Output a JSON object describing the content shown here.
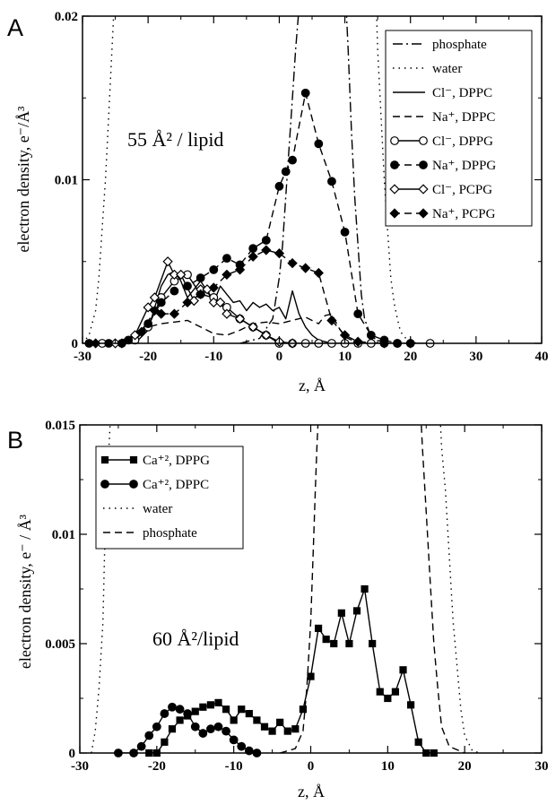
{
  "chart_data": [
    {
      "type": "line",
      "panel_label": "A",
      "xlabel": "z, Å",
      "ylabel": "electron density, e⁻/Å³",
      "xlim": [
        -30,
        40
      ],
      "ylim": [
        0,
        0.02
      ],
      "xticks": [
        -30,
        -20,
        -10,
        0,
        10,
        20,
        30,
        40
      ],
      "yticks": [
        0,
        0.01,
        0.02
      ],
      "xtick_labels": [
        "-30",
        "-20",
        "-10",
        "0",
        "10",
        "20",
        "30",
        "40"
      ],
      "ytick_labels": [
        "0",
        "0.01",
        "0.02"
      ],
      "legend_position": "top-right",
      "annotation": "55 Å² / lipid",
      "series": [
        {
          "name": "phosphate",
          "style": "dashdot",
          "marker": "none",
          "x": [
            -6,
            -3,
            -1,
            0,
            0.5,
            1,
            1.5,
            2,
            2.5,
            3
          ],
          "y": [
            0,
            0.0003,
            0.0015,
            0.004,
            0.006,
            0.009,
            0.012,
            0.015,
            0.018,
            0.0205
          ]
        },
        {
          "name": "phosphate",
          "style": "dashdot",
          "marker": "none",
          "x": [
            10.2,
            10.5,
            11,
            11.5,
            12,
            12.5,
            13,
            14,
            16
          ],
          "y": [
            0.0205,
            0.018,
            0.013,
            0.009,
            0.006,
            0.003,
            0.0015,
            0.0004,
            0
          ]
        },
        {
          "name": "water",
          "style": "dotted",
          "marker": "none",
          "x": [
            -30,
            -29,
            -28,
            -27.5,
            -27,
            -26.5,
            -26,
            -25.5,
            -25.2
          ],
          "y": [
            0,
            0.0005,
            0.002,
            0.004,
            0.007,
            0.01,
            0.014,
            0.018,
            0.0205
          ]
        },
        {
          "name": "water",
          "style": "dotted",
          "marker": "none",
          "x": [
            14.8,
            15,
            15.5,
            16,
            16.5,
            17,
            17.5,
            18,
            18.5,
            19.5,
            21
          ],
          "y": [
            0.0205,
            0.018,
            0.014,
            0.01,
            0.007,
            0.004,
            0.0025,
            0.0015,
            0.0007,
            0.0002,
            0
          ]
        },
        {
          "name": "Cl⁻, DPPC",
          "style": "solid",
          "marker": "none",
          "x": [
            -22,
            -20,
            -19,
            -18,
            -17,
            -16,
            -15,
            -14,
            -13,
            -12,
            -11,
            -10,
            -9,
            -8,
            -7,
            -6,
            -5,
            -4,
            -3,
            -2,
            -1,
            0,
            1,
            2,
            3,
            4,
            5,
            6,
            7,
            8
          ],
          "y": [
            0,
            0.0008,
            0.0022,
            0.0035,
            0.0042,
            0.0044,
            0.0038,
            0.0028,
            0.0033,
            0.0038,
            0.0032,
            0.0025,
            0.0035,
            0.003,
            0.0025,
            0.0026,
            0.002,
            0.0025,
            0.0022,
            0.0024,
            0.002,
            0.0022,
            0.0015,
            0.0032,
            0.0018,
            0.001,
            0.0005,
            0.0002,
            0.0001,
            0
          ]
        },
        {
          "name": "Na⁺, DPPC",
          "style": "dashed",
          "marker": "none",
          "x": [
            -28,
            -26,
            -24,
            -22,
            -20,
            -18,
            -16,
            -14,
            -12,
            -10,
            -8,
            -6,
            -4,
            -2,
            0,
            2,
            4,
            6,
            7,
            8,
            9,
            10,
            12
          ],
          "y": [
            0,
            0,
            0.0002,
            0.0005,
            0.001,
            0.0012,
            0.0013,
            0.0014,
            0.001,
            0.0006,
            0.0005,
            0.0008,
            0.0012,
            0.0013,
            0.0012,
            0.0014,
            0.0016,
            0.0012,
            0.0017,
            0.0018,
            0.001,
            0.0004,
            0
          ]
        },
        {
          "name": "Cl⁻, DPPG",
          "style": "solid",
          "marker": "circle-open",
          "x": [
            -27,
            -24,
            -22,
            -20,
            -18,
            -16,
            -14,
            -12,
            -10,
            -8,
            -6,
            -4,
            -2,
            0,
            2,
            4,
            6,
            8,
            10,
            12,
            14,
            16,
            18,
            20,
            23
          ],
          "y": [
            0,
            0,
            0.0002,
            0.001,
            0.0028,
            0.0038,
            0.0042,
            0.003,
            0.0028,
            0.0022,
            0.0015,
            0.001,
            0.0005,
            0,
            0,
            0,
            0,
            0,
            0,
            0,
            0,
            0,
            0,
            0,
            0
          ]
        },
        {
          "name": "Na⁺, DPPG",
          "style": "dashed",
          "marker": "circle-filled",
          "x": [
            -29,
            -26,
            -23,
            -20,
            -18,
            -16,
            -14,
            -12,
            -10,
            -8,
            -6,
            -4,
            -2,
            0,
            1,
            2,
            4,
            6,
            8,
            10,
            12,
            14,
            16,
            18
          ],
          "y": [
            0,
            0,
            0.0002,
            0.0012,
            0.0025,
            0.0032,
            0.0035,
            0.004,
            0.0045,
            0.0052,
            0.0048,
            0.0058,
            0.0063,
            0.0096,
            0.0105,
            0.0112,
            0.0153,
            0.0122,
            0.0099,
            0.0068,
            0.0018,
            0.0005,
            0.0002,
            0
          ]
        },
        {
          "name": "Cl⁻, PCPG",
          "style": "solid",
          "marker": "diamond-open",
          "x": [
            -25,
            -22,
            -20,
            -19,
            -17,
            -16,
            -15,
            -13,
            -12,
            -11,
            -10,
            -9,
            -8,
            -6,
            -4,
            -2,
            0,
            2
          ],
          "y": [
            0,
            0.0005,
            0.0022,
            0.0028,
            0.005,
            0.0042,
            0.0042,
            0.0026,
            0.0033,
            0.0033,
            0.0025,
            0.0025,
            0.0018,
            0.0015,
            0.001,
            0.0005,
            0.0001,
            0
          ]
        },
        {
          "name": "Na⁺, PCPG",
          "style": "dashed",
          "marker": "diamond-filled",
          "x": [
            -28,
            -24,
            -21,
            -19,
            -18,
            -16,
            -14,
            -12,
            -10,
            -8,
            -6,
            -4,
            -2,
            0,
            2,
            4,
            6,
            8,
            10,
            12,
            16,
            20
          ],
          "y": [
            0,
            0,
            0.0007,
            0.002,
            0.0018,
            0.0018,
            0.0025,
            0.003,
            0.0034,
            0.0042,
            0.0045,
            0.0053,
            0.0057,
            0.0055,
            0.0049,
            0.0046,
            0.0043,
            0.0014,
            0.0005,
            0.0001,
            0,
            0
          ]
        }
      ]
    },
    {
      "type": "line",
      "panel_label": "B",
      "xlabel": "z, Å",
      "ylabel": "electron density, e⁻ / Å³",
      "xlim": [
        -30,
        30
      ],
      "ylim": [
        0,
        0.015
      ],
      "xticks": [
        -30,
        -20,
        -10,
        0,
        10,
        20,
        30
      ],
      "yticks": [
        0,
        0.005,
        0.01,
        0.015
      ],
      "xtick_labels": [
        "-30",
        "-20",
        "-10",
        "0",
        "10",
        "20",
        "30"
      ],
      "ytick_labels": [
        "0",
        "0.005",
        "0.01",
        "0.015"
      ],
      "legend_position": "top-left",
      "annotation": "60 Å²/lipid",
      "series": [
        {
          "name": "Ca⁺², DPPG",
          "style": "solid",
          "marker": "square-filled",
          "x": [
            -21,
            -20,
            -19,
            -18,
            -17,
            -16,
            -15,
            -14,
            -13,
            -12,
            -11,
            -10,
            -9,
            -8,
            -7,
            -6,
            -5,
            -4,
            -3,
            -2,
            -1,
            0,
            1,
            2,
            3,
            4,
            5,
            6,
            7,
            8,
            9,
            10,
            11,
            12,
            13,
            14,
            15,
            16
          ],
          "y": [
            0,
            0,
            0.0005,
            0.0011,
            0.0015,
            0.0017,
            0.0019,
            0.0021,
            0.0022,
            0.0023,
            0.002,
            0.0015,
            0.002,
            0.0018,
            0.0015,
            0.0012,
            0.001,
            0.0014,
            0.001,
            0.0011,
            0.002,
            0.0035,
            0.0057,
            0.0052,
            0.005,
            0.0064,
            0.005,
            0.0065,
            0.0075,
            0.005,
            0.0028,
            0.0025,
            0.0028,
            0.0038,
            0.0022,
            0.0005,
            0,
            0
          ]
        },
        {
          "name": "Ca⁺², DPPC",
          "style": "solid",
          "marker": "circle-filled",
          "x": [
            -25,
            -23,
            -22,
            -21,
            -20,
            -19,
            -18,
            -17,
            -16,
            -15,
            -14,
            -13,
            -12,
            -11,
            -10,
            -9,
            -8,
            -7
          ],
          "y": [
            0,
            0,
            0.0003,
            0.0008,
            0.0012,
            0.0018,
            0.0021,
            0.002,
            0.0018,
            0.0012,
            0.0009,
            0.0011,
            0.0012,
            0.001,
            0.0006,
            0.0003,
            0.0001,
            0
          ]
        },
        {
          "name": "water",
          "style": "dotted",
          "marker": "none",
          "x": [
            -28.5,
            -28,
            -27.5,
            -27,
            -26.8,
            -26.5,
            -26.2,
            -26
          ],
          "y": [
            0,
            0.001,
            0.003,
            0.006,
            0.009,
            0.012,
            0.014,
            0.0155
          ]
        },
        {
          "name": "water",
          "style": "dotted",
          "marker": "none",
          "x": [
            16.8,
            17,
            17.5,
            18,
            18.5,
            19,
            19.5,
            20,
            21,
            22
          ],
          "y": [
            0.0155,
            0.014,
            0.012,
            0.009,
            0.006,
            0.004,
            0.002,
            0.0008,
            0.0001,
            0
          ]
        },
        {
          "name": "phosphate",
          "style": "dashed",
          "marker": "none",
          "x": [
            -4,
            -2,
            -1,
            -0.5,
            0,
            0.3,
            0.6,
            0.8,
            1
          ],
          "y": [
            0,
            0.0002,
            0.001,
            0.003,
            0.006,
            0.009,
            0.012,
            0.014,
            0.0155
          ]
        },
        {
          "name": "phosphate",
          "style": "dashed",
          "marker": "none",
          "x": [
            14.3,
            14.5,
            15,
            15.5,
            16,
            16.5,
            17,
            18,
            20
          ],
          "y": [
            0.0155,
            0.014,
            0.011,
            0.008,
            0.005,
            0.003,
            0.0012,
            0.0003,
            0
          ]
        }
      ]
    }
  ]
}
